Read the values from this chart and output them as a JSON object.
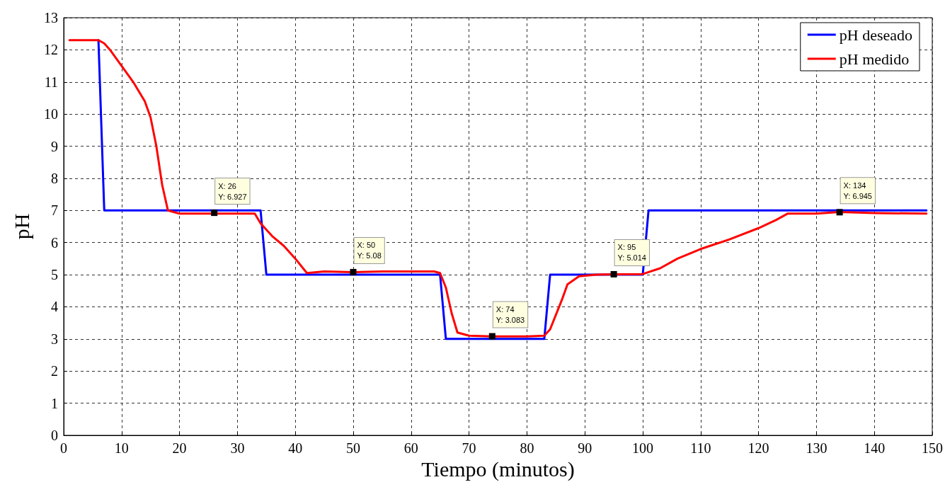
{
  "chart_data": {
    "type": "line",
    "xlabel": "Tiempo (minutos)",
    "ylabel": "pH",
    "xlim": [
      0,
      150
    ],
    "xticks": [
      0,
      10,
      20,
      30,
      40,
      50,
      60,
      70,
      80,
      90,
      100,
      110,
      120,
      130,
      140,
      150
    ],
    "ylim": [
      0,
      13
    ],
    "yticks": [
      0,
      1,
      2,
      3,
      4,
      5,
      6,
      7,
      8,
      9,
      10,
      11,
      12,
      13
    ],
    "grid": true,
    "legend": "top right",
    "marker": "none",
    "line_style": "solid",
    "series": [
      {
        "name": "pH deseado",
        "color": "#0000ff",
        "x": [
          6,
          7,
          34,
          35,
          65,
          66,
          83,
          84,
          100,
          101,
          149
        ],
        "values": [
          12.3,
          7,
          7,
          5,
          5,
          3,
          3,
          5,
          5,
          7,
          7
        ]
      },
      {
        "name": "pH medido",
        "color": "#ff0000",
        "x": [
          1,
          6,
          7,
          8,
          10,
          12,
          14,
          15,
          16,
          17,
          18,
          20,
          25,
          30,
          33,
          34,
          36,
          38,
          40,
          42,
          45,
          50,
          55,
          60,
          64,
          65,
          66,
          67,
          68,
          70,
          74,
          80,
          83,
          84,
          86,
          87,
          89,
          92,
          95,
          100,
          103,
          106,
          110,
          115,
          120,
          123,
          125,
          130,
          134,
          140,
          149
        ],
        "values": [
          12.3,
          12.3,
          12.2,
          12.0,
          11.5,
          11.0,
          10.4,
          9.9,
          9.0,
          7.8,
          7.0,
          6.9,
          6.9,
          6.9,
          6.9,
          6.6,
          6.2,
          5.9,
          5.5,
          5.05,
          5.1,
          5.08,
          5.1,
          5.1,
          5.1,
          5.05,
          4.6,
          3.8,
          3.2,
          3.1,
          3.08,
          3.08,
          3.1,
          3.3,
          4.2,
          4.7,
          4.95,
          5.0,
          5.01,
          5.02,
          5.2,
          5.5,
          5.8,
          6.1,
          6.45,
          6.7,
          6.9,
          6.9,
          6.95,
          6.92,
          6.9
        ]
      }
    ],
    "annotations": [
      {
        "text": "X: 26\nY: 6.927",
        "x": 26,
        "y": 6.927
      },
      {
        "text": "X: 50\nY: 5.08",
        "x": 50,
        "y": 5.08
      },
      {
        "text": "X: 74\nY: 3.083",
        "x": 74,
        "y": 3.083
      },
      {
        "text": "X: 95\nY: 5.014",
        "x": 95,
        "y": 5.014
      },
      {
        "text": "X: 134\nY: 6.945",
        "x": 134,
        "y": 6.945
      }
    ]
  }
}
